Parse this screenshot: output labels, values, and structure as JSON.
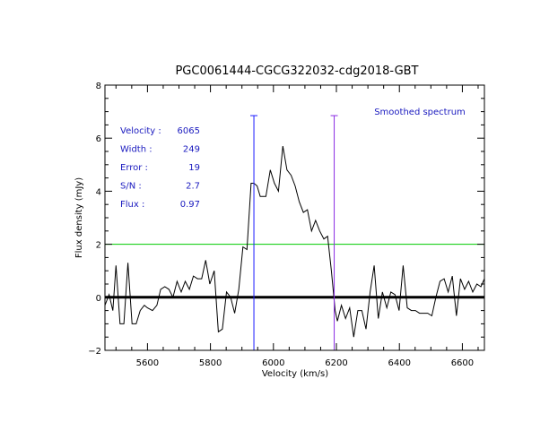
{
  "chart_data": {
    "type": "line",
    "title": "PGC0061444-CGCG322032-cdg2018-GBT",
    "xlabel": "Velocity (km/s)",
    "ylabel": "Flux density (mJy)",
    "xlim": [
      5465,
      6670
    ],
    "ylim": [
      -2,
      8
    ],
    "x_ticks": [
      5600,
      5800,
      6000,
      6200,
      6400,
      6600
    ],
    "x_tick_labels": [
      "5600",
      "5800",
      "6000",
      "6200",
      "6400",
      "6600"
    ],
    "y_ticks": [
      -2,
      0,
      2,
      4,
      6,
      8
    ],
    "y_tick_labels": [
      "−2",
      "0",
      "2",
      "4",
      "6",
      "8"
    ],
    "legend": "Smoothed spectrum",
    "series": [
      {
        "name": "Smoothed spectrum",
        "x": [
          5465,
          5478,
          5490,
          5500,
          5513,
          5525,
          5538,
          5551,
          5564,
          5577,
          5590,
          5600,
          5616,
          5630,
          5642,
          5655,
          5668,
          5681,
          5694,
          5707,
          5720,
          5733,
          5746,
          5759,
          5772,
          5785,
          5798,
          5812,
          5825,
          5838,
          5851,
          5864,
          5877,
          5890,
          5903,
          5916,
          5929,
          5938,
          5948,
          5958,
          5966,
          5976,
          5990,
          6003,
          6016,
          6030,
          6043,
          6056,
          6069,
          6082,
          6095,
          6108,
          6121,
          6134,
          6147,
          6160,
          6172,
          6184,
          6196,
          6203,
          6216,
          6229,
          6242,
          6255,
          6268,
          6281,
          6294,
          6307,
          6320,
          6333,
          6346,
          6360,
          6373,
          6386,
          6399,
          6412,
          6425,
          6438,
          6451,
          6464,
          6477,
          6490,
          6503,
          6516,
          6529,
          6542,
          6555,
          6568,
          6581,
          6594,
          6607,
          6620,
          6633,
          6646,
          6659,
          6670
        ],
        "y": [
          -0.3,
          0.1,
          -0.5,
          1.2,
          -1.0,
          -1.0,
          1.3,
          -1.0,
          -1.0,
          -0.5,
          -0.3,
          -0.4,
          -0.5,
          -0.3,
          0.3,
          0.4,
          0.3,
          0.0,
          0.6,
          0.2,
          0.6,
          0.3,
          0.8,
          0.7,
          0.7,
          1.4,
          0.5,
          1.0,
          -1.3,
          -1.2,
          0.2,
          0.0,
          -0.6,
          0.3,
          1.9,
          1.8,
          4.3,
          4.3,
          4.2,
          3.8,
          3.8,
          3.8,
          4.8,
          4.3,
          4.0,
          5.7,
          4.8,
          4.6,
          4.2,
          3.6,
          3.2,
          3.3,
          2.5,
          2.9,
          2.5,
          2.2,
          2.3,
          1.0,
          -0.5,
          -0.9,
          -0.3,
          -0.8,
          -0.4,
          -1.5,
          -0.5,
          -0.5,
          -1.2,
          0.2,
          1.2,
          -0.8,
          0.2,
          -0.4,
          0.2,
          0.1,
          -0.5,
          1.2,
          -0.4,
          -0.5,
          -0.5,
          -0.6,
          -0.6,
          -0.6,
          -0.7,
          0.0,
          0.6,
          0.7,
          0.2,
          0.8,
          -0.7,
          0.7,
          0.3,
          0.6,
          0.2,
          0.5,
          0.4,
          0.7
        ]
      }
    ],
    "baseline_y": 0,
    "threshold_y": 2,
    "marker_lines_x": [
      5938,
      6193
    ],
    "stats": [
      {
        "label": "Velocity :",
        "value": "6065"
      },
      {
        "label": "Width :",
        "value": "249"
      },
      {
        "label": "Error :",
        "value": "19"
      },
      {
        "label": "S/N :",
        "value": "2.7"
      },
      {
        "label": "Flux :",
        "value": "0.97"
      }
    ],
    "colors": {
      "spectrum": "#000000",
      "baseline": "#000000",
      "threshold": "#00cc00",
      "marker_left": "#1a1aff",
      "marker_right": "#8a2be2",
      "annotation": "#1a1abf"
    }
  }
}
